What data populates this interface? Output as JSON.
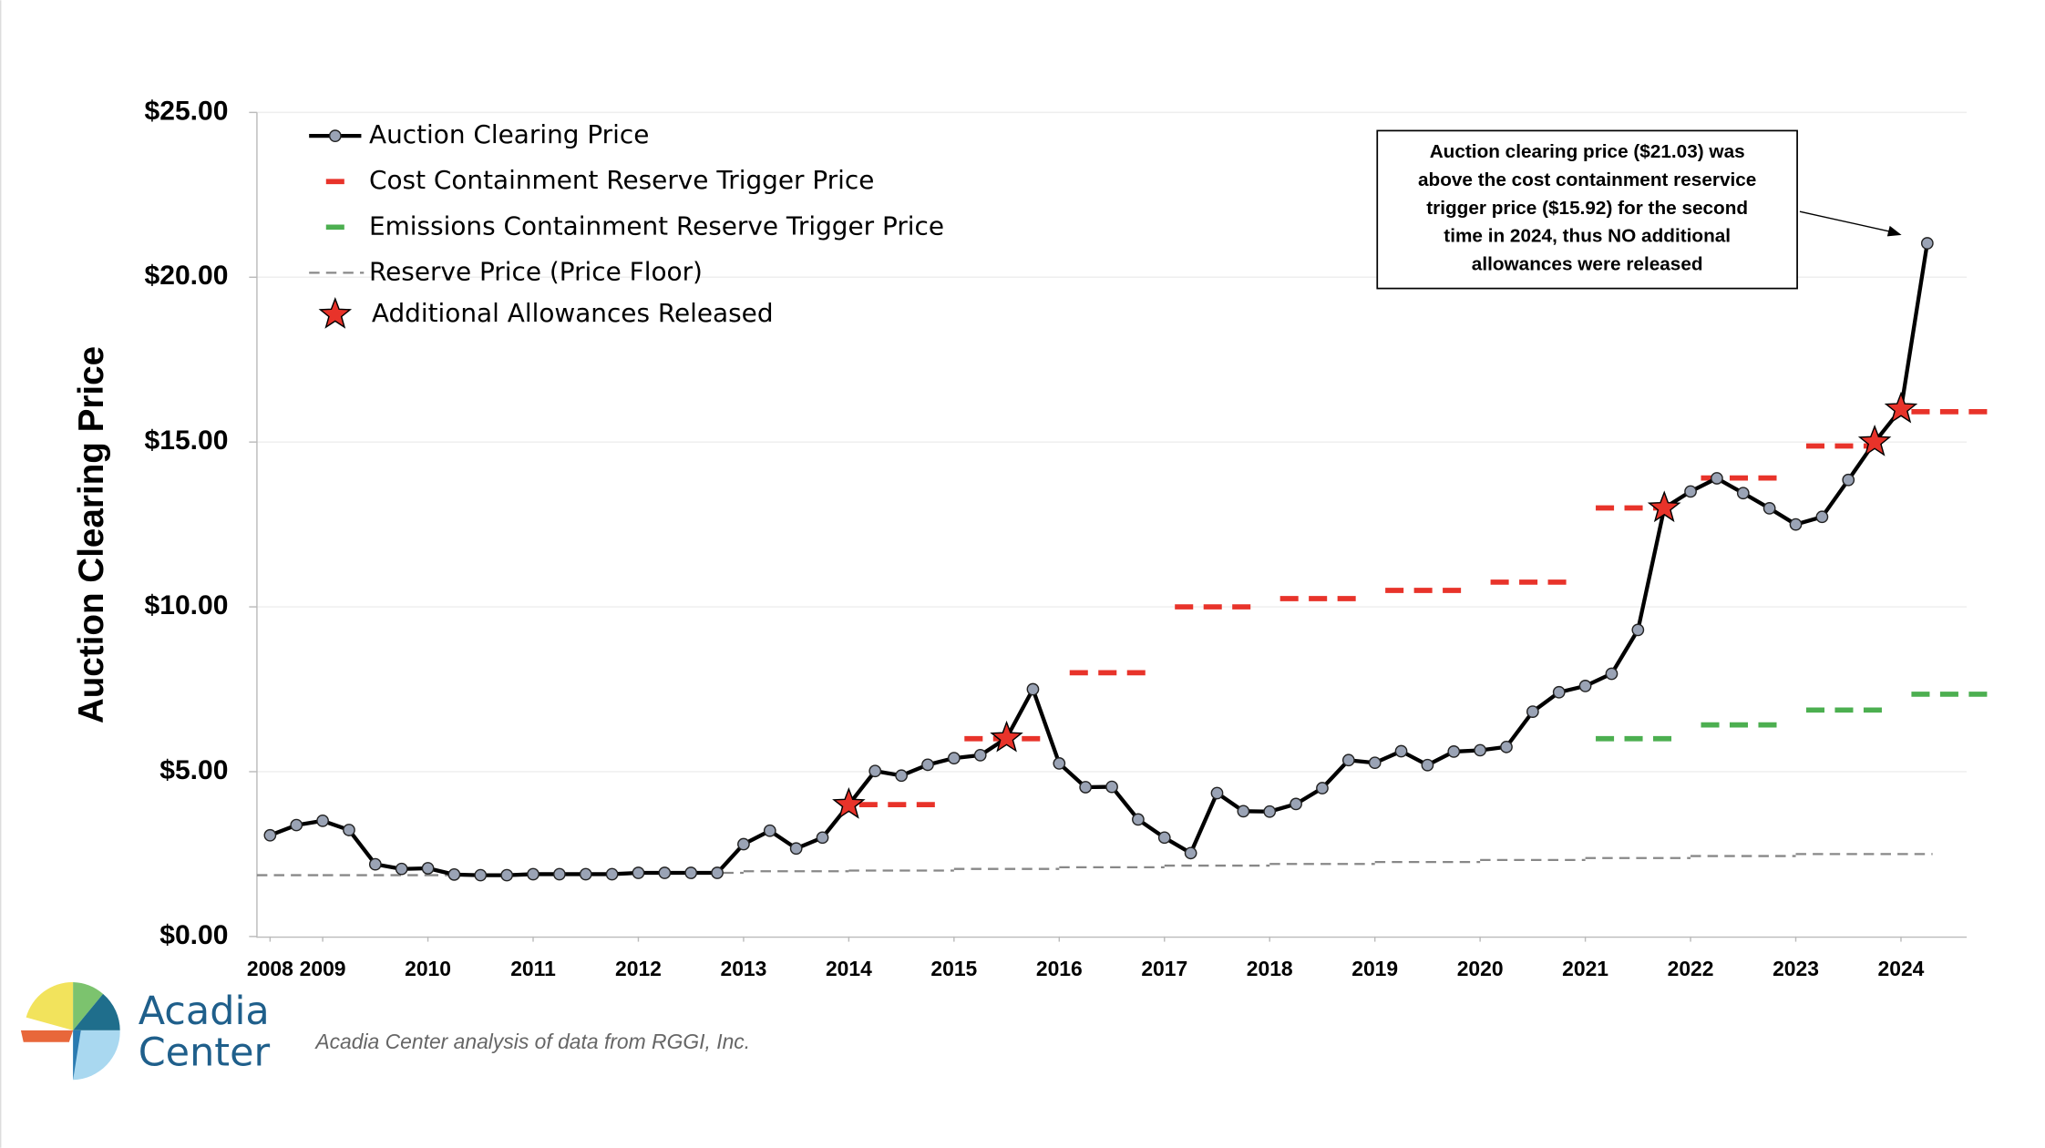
{
  "chart_data": {
    "type": "line",
    "y_label": "Auction Clearing Price",
    "xlim": [
      2008.375,
      2024.625
    ],
    "xticks": [
      {
        "value": 2008.5,
        "label": "2008"
      },
      2009,
      2010,
      2011,
      2012,
      2013,
      2014,
      2015,
      2016,
      2017,
      2018,
      2019,
      2020,
      2021,
      2022,
      2023,
      2024
    ],
    "ylim": [
      0,
      25
    ],
    "yticks": [
      {
        "value": 0,
        "label": "$0.00"
      },
      {
        "value": 5,
        "label": "$5.00"
      },
      {
        "value": 10,
        "label": "$10.00"
      },
      {
        "value": 15,
        "label": "$15.00"
      },
      {
        "value": 20,
        "label": "$20.00"
      },
      {
        "value": 25,
        "label": "$25.00"
      }
    ],
    "grid": true,
    "series": [
      {
        "name": "Auction Clearing Price",
        "mark": "line",
        "color": "#000000",
        "marker_color": "#9aa3b5",
        "x": [
          2008.5,
          2008.75,
          2009,
          2009.25,
          2009.5,
          2009.75,
          2010,
          2010.25,
          2010.5,
          2010.75,
          2011,
          2011.25,
          2011.5,
          2011.75,
          2012,
          2012.25,
          2012.5,
          2012.75,
          2013,
          2013.25,
          2013.5,
          2013.75,
          2014,
          2014.25,
          2014.5,
          2014.75,
          2015,
          2015.25,
          2015.5,
          2015.75,
          2016,
          2016.25,
          2016.5,
          2016.75,
          2017,
          2017.25,
          2017.5,
          2017.75,
          2018,
          2018.25,
          2018.5,
          2018.75,
          2019,
          2019.25,
          2019.5,
          2019.75,
          2020,
          2020.25,
          2020.5,
          2020.75,
          2021,
          2021.25,
          2021.5,
          2021.75,
          2022,
          2022.25,
          2022.5,
          2022.75,
          2023,
          2023.25,
          2023.5,
          2023.75,
          2024,
          2024.25
        ],
        "values": [
          3.07,
          3.38,
          3.51,
          3.23,
          2.19,
          2.05,
          2.07,
          1.88,
          1.86,
          1.86,
          1.89,
          1.89,
          1.89,
          1.89,
          1.93,
          1.93,
          1.93,
          1.93,
          2.8,
          3.21,
          2.67,
          3.0,
          4.0,
          5.02,
          4.88,
          5.21,
          5.41,
          5.5,
          6.02,
          7.5,
          5.25,
          4.53,
          4.54,
          3.55,
          3.0,
          2.53,
          4.35,
          3.8,
          3.79,
          4.02,
          4.5,
          5.35,
          5.27,
          5.62,
          5.2,
          5.61,
          5.65,
          5.75,
          6.82,
          7.41,
          7.6,
          7.97,
          9.3,
          13.0,
          13.5,
          13.9,
          13.45,
          12.99,
          12.5,
          12.73,
          13.85,
          15.0,
          16.0,
          21.03
        ]
      },
      {
        "name": "Cost Containment Reserve Trigger Price",
        "mark": "dash",
        "color": "#e8332a",
        "x": [
          2014,
          2015,
          2016,
          2017,
          2018,
          2019,
          2020,
          2021,
          2022,
          2023,
          2024
        ],
        "values": [
          4.0,
          6.0,
          8.0,
          10.0,
          10.25,
          10.5,
          10.75,
          13.0,
          13.91,
          14.88,
          15.92
        ]
      },
      {
        "name": "Emissions Containment Reserve Trigger Price",
        "mark": "dash",
        "color": "#4caf50",
        "x": [
          2021,
          2022,
          2023,
          2024
        ],
        "values": [
          6.0,
          6.42,
          6.87,
          7.35
        ]
      },
      {
        "name": "Reserve Price (Price Floor)",
        "mark": "step",
        "color": "#888888",
        "x": [
          2008.375,
          2009,
          2010,
          2011,
          2012,
          2013,
          2014,
          2015,
          2016,
          2017,
          2018,
          2019,
          2020,
          2021,
          2022,
          2023
        ],
        "values": [
          1.86,
          1.86,
          1.86,
          1.89,
          1.93,
          1.98,
          2.0,
          2.05,
          2.1,
          2.15,
          2.2,
          2.26,
          2.32,
          2.38,
          2.44,
          2.5
        ]
      },
      {
        "name": "Additional Allowances Released",
        "mark": "star",
        "color": "#e8332a",
        "x": [
          2014,
          2015.5,
          2021.75,
          2023.75,
          2024
        ],
        "values": [
          4.0,
          6.02,
          13.0,
          15.0,
          16.0
        ]
      }
    ],
    "annotation": [
      "Auction clearing price ($21.03) was",
      "above the cost containment reservice",
      "trigger price ($15.92) for the second",
      "time in 2024, thus NO additional",
      "allowances were released"
    ],
    "source": "Acadia Center analysis of data from RGGI, Inc.",
    "logo": [
      "Acadia",
      "Center"
    ]
  }
}
